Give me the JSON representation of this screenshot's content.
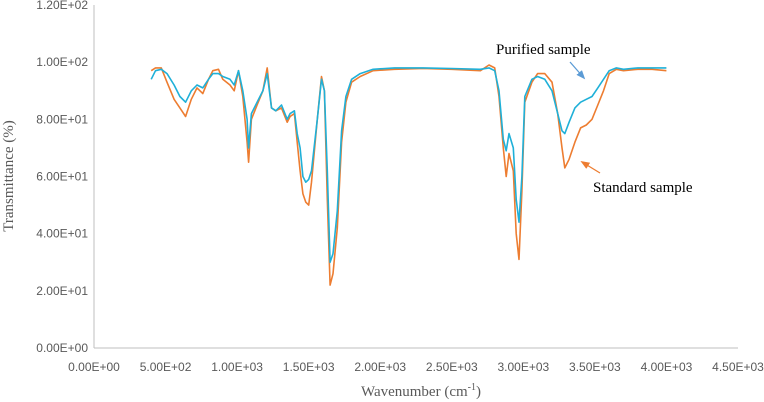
{
  "chart_data": {
    "type": "line",
    "xlabel": "Wavenumber (cm",
    "xlabel_sup": "-1",
    "xlabel_close": ")",
    "ylabel": "Transmittance (%)",
    "xlim": [
      0,
      4500
    ],
    "ylim": [
      0,
      120
    ],
    "xticks": [
      0,
      500,
      1000,
      1500,
      2000,
      2500,
      3000,
      3500,
      4000,
      4500
    ],
    "yticks": [
      0,
      20,
      40,
      60,
      80,
      100,
      120
    ],
    "xtick_labels": [
      "0.00E+00",
      "5.00E+02",
      "1.00E+03",
      "1.50E+03",
      "2.00E+03",
      "2.50E+03",
      "3.00E+03",
      "3.50E+03",
      "4.00E+03",
      "4.50E+03"
    ],
    "ytick_labels": [
      "0.00E+00",
      "2.00E+01",
      "4.00E+01",
      "6.00E+01",
      "8.00E+01",
      "1.00E+02",
      "1.20E+02"
    ],
    "grid": false,
    "legend": "none",
    "series": [
      {
        "name": "Purified sample",
        "color": "#1fb0d8",
        "points": [
          [
            400,
            94
          ],
          [
            430,
            97
          ],
          [
            470,
            97.5
          ],
          [
            510,
            96
          ],
          [
            560,
            92
          ],
          [
            600,
            88
          ],
          [
            640,
            86
          ],
          [
            680,
            90
          ],
          [
            720,
            92
          ],
          [
            760,
            91
          ],
          [
            800,
            94
          ],
          [
            830,
            96
          ],
          [
            870,
            96
          ],
          [
            900,
            95
          ],
          [
            950,
            94
          ],
          [
            980,
            92
          ],
          [
            1010,
            97
          ],
          [
            1040,
            90
          ],
          [
            1070,
            80
          ],
          [
            1080,
            70
          ],
          [
            1100,
            82
          ],
          [
            1140,
            86
          ],
          [
            1180,
            90
          ],
          [
            1210,
            96
          ],
          [
            1240,
            84
          ],
          [
            1270,
            83
          ],
          [
            1310,
            85
          ],
          [
            1350,
            80
          ],
          [
            1370,
            82
          ],
          [
            1400,
            83
          ],
          [
            1420,
            75
          ],
          [
            1440,
            70
          ],
          [
            1460,
            60
          ],
          [
            1480,
            58
          ],
          [
            1500,
            59
          ],
          [
            1520,
            62
          ],
          [
            1560,
            80
          ],
          [
            1590,
            94
          ],
          [
            1610,
            90
          ],
          [
            1630,
            62
          ],
          [
            1650,
            30
          ],
          [
            1670,
            33
          ],
          [
            1700,
            48
          ],
          [
            1730,
            76
          ],
          [
            1760,
            88
          ],
          [
            1800,
            94
          ],
          [
            1860,
            96
          ],
          [
            1950,
            97.5
          ],
          [
            2100,
            98
          ],
          [
            2300,
            98
          ],
          [
            2500,
            97.8
          ],
          [
            2700,
            97.5
          ],
          [
            2760,
            98
          ],
          [
            2800,
            97
          ],
          [
            2830,
            90
          ],
          [
            2860,
            73
          ],
          [
            2880,
            69
          ],
          [
            2900,
            75
          ],
          [
            2930,
            70
          ],
          [
            2950,
            52
          ],
          [
            2970,
            44
          ],
          [
            2990,
            60
          ],
          [
            3010,
            88
          ],
          [
            3060,
            94
          ],
          [
            3100,
            95
          ],
          [
            3150,
            94
          ],
          [
            3200,
            90
          ],
          [
            3240,
            82
          ],
          [
            3270,
            76
          ],
          [
            3290,
            75
          ],
          [
            3320,
            79
          ],
          [
            3360,
            84
          ],
          [
            3400,
            86
          ],
          [
            3440,
            87
          ],
          [
            3480,
            88
          ],
          [
            3520,
            91
          ],
          [
            3560,
            94
          ],
          [
            3600,
            97
          ],
          [
            3650,
            98
          ],
          [
            3700,
            97.5
          ],
          [
            3800,
            98
          ],
          [
            3900,
            98
          ],
          [
            4000,
            98
          ]
        ]
      },
      {
        "name": "Standard sample",
        "color": "#ed7d31",
        "points": [
          [
            400,
            97
          ],
          [
            430,
            98
          ],
          [
            470,
            98
          ],
          [
            510,
            93
          ],
          [
            560,
            87
          ],
          [
            600,
            84
          ],
          [
            640,
            81
          ],
          [
            680,
            87
          ],
          [
            720,
            91
          ],
          [
            760,
            89
          ],
          [
            800,
            94
          ],
          [
            830,
            97
          ],
          [
            870,
            97.5
          ],
          [
            900,
            94
          ],
          [
            950,
            92
          ],
          [
            980,
            90
          ],
          [
            1010,
            97
          ],
          [
            1040,
            88
          ],
          [
            1070,
            72
          ],
          [
            1080,
            65
          ],
          [
            1100,
            80
          ],
          [
            1140,
            85
          ],
          [
            1180,
            90
          ],
          [
            1210,
            98
          ],
          [
            1240,
            84
          ],
          [
            1270,
            83
          ],
          [
            1310,
            84
          ],
          [
            1350,
            79
          ],
          [
            1370,
            81
          ],
          [
            1400,
            82
          ],
          [
            1420,
            72
          ],
          [
            1440,
            62
          ],
          [
            1460,
            54
          ],
          [
            1480,
            51
          ],
          [
            1500,
            50
          ],
          [
            1520,
            58
          ],
          [
            1560,
            80
          ],
          [
            1590,
            95
          ],
          [
            1610,
            90
          ],
          [
            1630,
            52
          ],
          [
            1650,
            22
          ],
          [
            1670,
            26
          ],
          [
            1700,
            42
          ],
          [
            1730,
            72
          ],
          [
            1760,
            86
          ],
          [
            1800,
            93
          ],
          [
            1860,
            95
          ],
          [
            1950,
            97
          ],
          [
            2100,
            97.5
          ],
          [
            2300,
            97.8
          ],
          [
            2500,
            97.5
          ],
          [
            2700,
            97
          ],
          [
            2760,
            99
          ],
          [
            2800,
            98
          ],
          [
            2830,
            88
          ],
          [
            2860,
            70
          ],
          [
            2880,
            60
          ],
          [
            2900,
            68
          ],
          [
            2930,
            62
          ],
          [
            2950,
            40
          ],
          [
            2970,
            31
          ],
          [
            2990,
            55
          ],
          [
            3010,
            86
          ],
          [
            3060,
            93
          ],
          [
            3100,
            96
          ],
          [
            3150,
            96
          ],
          [
            3200,
            93
          ],
          [
            3240,
            82
          ],
          [
            3270,
            70
          ],
          [
            3290,
            63
          ],
          [
            3320,
            66
          ],
          [
            3360,
            72
          ],
          [
            3400,
            77
          ],
          [
            3440,
            78
          ],
          [
            3480,
            80
          ],
          [
            3520,
            85
          ],
          [
            3560,
            90
          ],
          [
            3600,
            96
          ],
          [
            3650,
            97.5
          ],
          [
            3700,
            97
          ],
          [
            3800,
            97.5
          ],
          [
            3900,
            97.5
          ],
          [
            4000,
            97
          ]
        ]
      }
    ],
    "annotations": [
      {
        "text": "Purified sample",
        "color": "#000000",
        "arrow_color": "#5b9bd5"
      },
      {
        "text": "Standard sample",
        "color": "#000000",
        "arrow_color": "#ed7d31"
      }
    ]
  }
}
